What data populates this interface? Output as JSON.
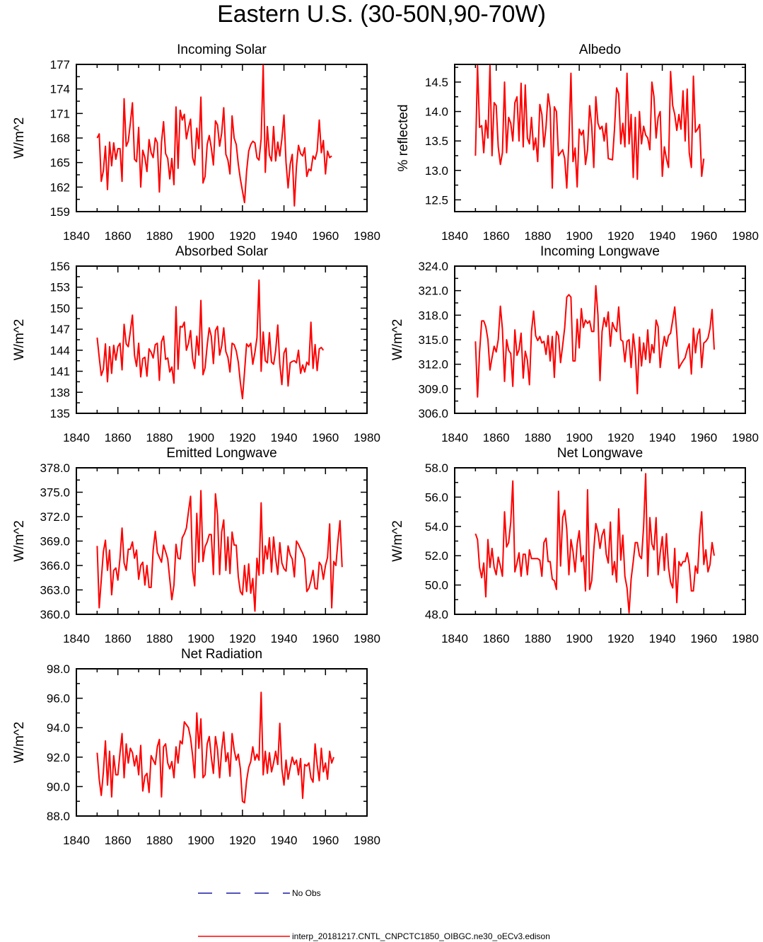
{
  "page": {
    "title": "Eastern U.S. (30-50N,90-70W)"
  },
  "legend": {
    "obs_label": "No Obs",
    "obs_color": "#1a1aa6",
    "model_label": "interp_20181217.CNTL_CNPCTC1850_OIBGC.ne30_oECv3.edison",
    "model_color": "#ff0000"
  },
  "chart_data": [
    {
      "type": "line",
      "title": "Incoming Solar",
      "ylabel": "W/m^2",
      "xlim": [
        1840,
        1980
      ],
      "ylim": [
        159,
        177
      ],
      "xticks": [
        "1840",
        "1860",
        "1880",
        "1900",
        "1920",
        "1940",
        "1960",
        "1980"
      ],
      "yticks": [
        "159",
        "162",
        "165",
        "168",
        "171",
        "174",
        "177"
      ],
      "series": [
        {
          "color": "#ff0000",
          "x_start": 1850,
          "values": [
            168.0,
            168.5,
            162.7,
            164.0,
            167.0,
            161.7,
            167.5,
            164.6,
            167.4,
            165.4,
            166.7,
            166.7,
            162.7,
            172.8,
            167.0,
            167.6,
            169.8,
            172.3,
            165.4,
            165.1,
            169.3,
            162.0,
            166.5,
            165.6,
            163.9,
            167.8,
            166.2,
            165.6,
            168.0,
            167.4,
            161.4,
            167.5,
            170.0,
            166.1,
            165.5,
            163.0,
            165.5,
            162.3,
            171.8,
            164.3,
            171.4,
            170.2,
            170.9,
            167.9,
            169.2,
            170.3,
            165.6,
            164.7,
            169.2,
            166.7,
            173.0,
            162.5,
            163.3,
            167.2,
            168.3,
            166.8,
            164.7,
            170.1,
            169.6,
            167.0,
            168.6,
            171.7,
            166.0,
            165.3,
            163.6,
            170.7,
            168.0,
            167.2,
            164.8,
            163.0,
            161.5,
            160.1,
            163.9,
            166.4,
            167.2,
            167.6,
            167.4,
            165.6,
            165.3,
            167.9,
            176.9,
            163.8,
            169.4,
            165.9,
            165.2,
            169.4,
            165.2,
            167.5,
            165.8,
            167.9,
            170.8,
            165.0,
            161.9,
            164.8,
            166.0,
            159.7,
            164.5,
            167.1,
            166.1,
            165.8,
            166.8,
            163.3,
            164.2,
            164.0,
            165.8,
            165.4,
            166.4,
            170.2,
            166.2,
            167.7,
            163.6,
            166.4,
            165.6,
            165.8
          ]
        }
      ]
    },
    {
      "type": "line",
      "title": "Albedo",
      "ylabel": "% reflected",
      "xlim": [
        1840,
        1980
      ],
      "ylim": [
        12.3,
        14.8
      ],
      "xticks": [
        "1840",
        "1860",
        "1880",
        "1900",
        "1920",
        "1940",
        "1960",
        "1980"
      ],
      "yticks": [
        "12.5",
        "13.0",
        "13.5",
        "14.0",
        "14.5"
      ],
      "series": [
        {
          "color": "#ff0000",
          "x_start": 1850,
          "values": [
            13.25,
            14.78,
            13.73,
            13.76,
            13.3,
            13.85,
            13.55,
            14.78,
            13.25,
            14.15,
            14.1,
            13.4,
            13.1,
            13.3,
            14.5,
            13.3,
            13.9,
            13.8,
            13.5,
            14.15,
            14.25,
            13.5,
            14.48,
            13.4,
            14.45,
            13.55,
            13.45,
            13.9,
            13.35,
            13.55,
            13.15,
            14.12,
            13.95,
            13.4,
            13.75,
            14.3,
            14.05,
            12.7,
            14.08,
            14.0,
            13.25,
            13.3,
            13.35,
            13.2,
            12.7,
            13.5,
            14.65,
            13.15,
            13.38,
            12.72,
            13.7,
            13.6,
            13.68,
            13.1,
            13.35,
            14.1,
            13.75,
            13.05,
            14.25,
            13.8,
            13.7,
            13.75,
            13.5,
            13.8,
            13.2,
            13.19,
            13.18,
            13.7,
            14.4,
            14.3,
            13.45,
            13.8,
            13.4,
            14.65,
            13.45,
            13.95,
            12.88,
            13.9,
            12.85,
            14.0,
            13.45,
            13.75,
            13.6,
            13.55,
            13.35,
            14.5,
            14.25,
            13.55,
            13.9,
            14.0,
            12.9,
            13.4,
            13.2,
            13.05,
            14.68,
            14.1,
            13.95,
            13.68,
            13.95,
            13.7,
            14.35,
            13.5,
            14.38,
            13.3,
            13.05,
            14.6,
            13.65,
            13.7,
            13.78,
            12.9,
            13.2
          ]
        }
      ]
    },
    {
      "type": "line",
      "title": "Absorbed Solar",
      "ylabel": "W/m^2",
      "xlim": [
        1840,
        1980
      ],
      "ylim": [
        135,
        156
      ],
      "xticks": [
        "1840",
        "1860",
        "1880",
        "1900",
        "1920",
        "1940",
        "1960",
        "1980"
      ],
      "yticks": [
        "135",
        "138",
        "141",
        "144",
        "147",
        "150",
        "153",
        "156"
      ],
      "series": [
        {
          "color": "#ff0000",
          "x_start": 1850,
          "values": [
            145.8,
            143.0,
            140.4,
            141.3,
            144.9,
            139.5,
            144.5,
            140.7,
            144.7,
            142.6,
            144.5,
            145.0,
            141.2,
            147.7,
            144.9,
            144.5,
            146.7,
            149.0,
            143.3,
            141.7,
            145.0,
            140.2,
            142.8,
            143.0,
            140.3,
            144.2,
            143.7,
            142.9,
            144.8,
            145.0,
            139.7,
            145.2,
            146.0,
            142.7,
            142.9,
            140.9,
            141.6,
            139.3,
            150.2,
            141.3,
            147.4,
            147.3,
            148.0,
            144.0,
            145.0,
            146.8,
            142.8,
            141.4,
            146.0,
            143.3,
            151.1,
            140.5,
            141.5,
            144.7,
            147.2,
            146.0,
            142.1,
            146.8,
            147.4,
            143.3,
            144.6,
            147.2,
            143.8,
            143.0,
            140.9,
            145.0,
            144.8,
            143.9,
            142.3,
            139.4,
            137.1,
            140.9,
            144.9,
            144.5,
            145.0,
            142.0,
            143.7,
            145.8,
            154.0,
            141.0,
            146.6,
            142.5,
            142.2,
            146.5,
            142.3,
            142.0,
            143.9,
            147.6,
            142.0,
            139.1,
            143.6,
            144.3,
            138.9,
            142.2,
            142.4,
            142.5,
            142.2,
            144.0,
            140.7,
            141.9,
            140.9,
            142.3,
            141.9,
            148.0,
            141.4,
            144.8,
            141.1,
            144.2,
            144.4,
            144.0
          ]
        }
      ]
    },
    {
      "type": "line",
      "title": "Incoming Longwave",
      "ylabel": "W/m^2",
      "xlim": [
        1840,
        1980
      ],
      "ylim": [
        306.0,
        324.0
      ],
      "xticks": [
        "1840",
        "1860",
        "1880",
        "1900",
        "1920",
        "1940",
        "1960",
        "1980"
      ],
      "yticks": [
        "306.0",
        "309.0",
        "312.0",
        "315.0",
        "318.0",
        "321.0",
        "324.0"
      ],
      "series": [
        {
          "color": "#ff0000",
          "x_start": 1850,
          "values": [
            314.8,
            308.0,
            313.5,
            317.3,
            317.3,
            316.6,
            315.0,
            311.3,
            312.8,
            314.2,
            313.5,
            315.0,
            319.1,
            316.3,
            309.9,
            315.0,
            313.7,
            313.3,
            309.3,
            316.2,
            313.1,
            313.8,
            315.8,
            310.3,
            313.6,
            312.5,
            309.5,
            316.0,
            318.5,
            315.5,
            314.9,
            315.4,
            314.6,
            314.8,
            313.2,
            315.5,
            312.4,
            315.4,
            310.4,
            316.0,
            315.5,
            312.2,
            314.3,
            316.5,
            320.2,
            320.5,
            320.2,
            312.4,
            312.4,
            317.5,
            314.0,
            318.8,
            316.5,
            317.4,
            317.0,
            317.3,
            316.0,
            316.0,
            321.6,
            318.0,
            310.0,
            316.0,
            317.7,
            316.6,
            318.4,
            314.2,
            317.1,
            316.4,
            316.0,
            319.0,
            315.0,
            314.8,
            312.3,
            314.8,
            315.0,
            311.6,
            315.7,
            313.5,
            308.4,
            315.3,
            311.8,
            314.6,
            312.6,
            316.2,
            312.2,
            314.4,
            313.4,
            317.4,
            316.6,
            311.6,
            313.8,
            315.4,
            314.2,
            315.5,
            315.8,
            317.4,
            319.0,
            315.8,
            311.5,
            312.0,
            312.4,
            312.8,
            313.8,
            314.5,
            310.8,
            316.4,
            313.4,
            315.6,
            316.3,
            311.6,
            314.6,
            314.8,
            315.2,
            316.4,
            318.7,
            313.8
          ]
        }
      ]
    },
    {
      "type": "line",
      "title": "Emitted Longwave",
      "ylabel": "W/m^2",
      "xlim": [
        1840,
        1980
      ],
      "ylim": [
        360.0,
        378.0
      ],
      "xticks": [
        "1840",
        "1860",
        "1880",
        "1900",
        "1920",
        "1940",
        "1960",
        "1980"
      ],
      "yticks": [
        "360.0",
        "363.0",
        "366.0",
        "369.0",
        "372.0",
        "375.0",
        "378.0"
      ],
      "series": [
        {
          "color": "#ff0000",
          "x_start": 1850,
          "values": [
            368.4,
            360.8,
            364.2,
            367.7,
            369.1,
            365.4,
            367.9,
            362.4,
            365.4,
            365.7,
            364.2,
            366.9,
            370.6,
            366.3,
            365.4,
            368.0,
            368.0,
            368.9,
            366.9,
            367.9,
            364.3,
            366.0,
            366.4,
            363.6,
            366.0,
            363.3,
            363.3,
            367.9,
            370.2,
            367.6,
            367.0,
            366.4,
            368.5,
            367.7,
            366.8,
            364.3,
            361.8,
            363.6,
            368.6,
            366.9,
            366.8,
            369.4,
            369.9,
            370.6,
            372.6,
            374.5,
            365.4,
            363.5,
            372.4,
            366.4,
            375.2,
            366.5,
            368.3,
            368.9,
            369.8,
            369.8,
            364.9,
            374.8,
            372.2,
            364.9,
            370.1,
            371.6,
            365.4,
            369.5,
            365.0,
            370.1,
            368.5,
            368.5,
            364.6,
            362.8,
            362.4,
            366.0,
            362.8,
            366.2,
            362.6,
            364.4,
            360.4,
            366.9,
            364.8,
            373.7,
            365.0,
            368.4,
            366.8,
            369.4,
            365.2,
            369.5,
            366.9,
            364.9,
            368.8,
            366.3,
            365.6,
            365.3,
            368.4,
            367.3,
            366.8,
            364.6,
            369.0,
            368.6,
            368.0,
            367.5,
            366.8,
            362.8,
            363.2,
            364.1,
            365.4,
            363.2,
            363.1,
            366.4,
            366.0,
            364.3,
            366.0,
            367.0,
            371.1,
            360.8,
            366.5,
            366.0,
            369.0,
            371.5,
            365.8
          ]
        }
      ]
    },
    {
      "type": "line",
      "title": "Net Longwave",
      "ylabel": "W/m^2",
      "xlim": [
        1840,
        1980
      ],
      "ylim": [
        48.0,
        58.0
      ],
      "xticks": [
        "1840",
        "1860",
        "1880",
        "1900",
        "1920",
        "1940",
        "1960",
        "1980"
      ],
      "yticks": [
        "48.0",
        "50.0",
        "52.0",
        "54.0",
        "56.0",
        "58.0"
      ],
      "series": [
        {
          "color": "#ff0000",
          "x_start": 1850,
          "values": [
            53.5,
            53.1,
            51.2,
            50.5,
            51.5,
            49.2,
            53.1,
            51.2,
            52.5,
            51.2,
            50.7,
            51.9,
            51.3,
            50.6,
            55.0,
            52.6,
            52.9,
            54.3,
            57.1,
            50.9,
            51.5,
            52.2,
            50.6,
            52.1,
            52.1,
            50.7,
            52.4,
            51.8,
            51.8,
            51.8,
            51.8,
            51.7,
            50.6,
            52.9,
            53.2,
            51.6,
            51.6,
            50.4,
            50.3,
            49.7,
            56.4,
            51.3,
            54.6,
            55.1,
            53.8,
            50.7,
            53.1,
            52.3,
            50.9,
            52.8,
            53.7,
            51.6,
            52.0,
            49.6,
            56.5,
            49.7,
            50.3,
            52.4,
            54.2,
            53.6,
            52.5,
            53.4,
            53.8,
            52.1,
            51.5,
            54.3,
            50.7,
            51.6,
            50.2,
            55.2,
            51.7,
            53.4,
            50.6,
            49.8,
            48.1,
            50.4,
            51.6,
            52.9,
            52.9,
            52.0,
            51.8,
            54.0,
            57.6,
            50.6,
            54.6,
            52.8,
            52.4,
            54.6,
            50.7,
            52.2,
            53.3,
            51.0,
            53.5,
            51.2,
            50.2,
            49.8,
            52.5,
            48.8,
            51.6,
            51.3,
            51.6,
            51.6,
            52.2,
            51.4,
            49.6,
            49.6,
            51.3,
            50.8,
            53.4,
            55.0,
            51.4,
            52.4,
            50.9,
            51.4,
            52.9,
            52.0
          ]
        }
      ]
    },
    {
      "type": "line",
      "title": "Net Radiation",
      "ylabel": "W/m^2",
      "xlim": [
        1840,
        1980
      ],
      "ylim": [
        88.0,
        98.0
      ],
      "xticks": [
        "1840",
        "1860",
        "1880",
        "1900",
        "1920",
        "1940",
        "1960",
        "1980"
      ],
      "yticks": [
        "88.0",
        "90.0",
        "92.0",
        "94.0",
        "96.0",
        "98.0"
      ],
      "series": [
        {
          "color": "#ff0000",
          "x_start": 1850,
          "values": [
            92.3,
            90.5,
            89.4,
            91.0,
            93.1,
            90.1,
            92.4,
            89.3,
            92.1,
            90.8,
            90.8,
            92.3,
            93.6,
            90.6,
            92.9,
            91.6,
            92.6,
            92.3,
            91.4,
            92.1,
            90.8,
            92.8,
            89.7,
            90.7,
            90.9,
            89.6,
            92.1,
            91.8,
            91.5,
            92.7,
            93.2,
            89.3,
            92.7,
            92.9,
            91.6,
            91.2,
            91.7,
            90.6,
            92.7,
            91.6,
            93.1,
            92.9,
            94.4,
            94.2,
            94.0,
            93.3,
            92.1,
            90.6,
            95.0,
            92.6,
            94.6,
            90.6,
            90.8,
            92.9,
            93.4,
            92.0,
            90.9,
            93.4,
            92.5,
            90.6,
            92.5,
            93.7,
            91.7,
            92.3,
            90.7,
            93.6,
            92.5,
            91.8,
            92.2,
            91.2,
            89.0,
            88.9,
            90.4,
            91.3,
            91.7,
            92.7,
            91.8,
            92.2,
            91.8,
            96.4,
            90.8,
            92.4,
            90.9,
            92.3,
            91.0,
            91.6,
            92.4,
            91.5,
            94.3,
            91.2,
            90.1,
            91.8,
            90.5,
            91.3,
            92.0,
            91.5,
            91.8,
            90.8,
            91.9,
            89.2,
            91.5,
            91.4,
            91.6,
            90.6,
            90.3,
            92.9,
            91.5,
            90.4,
            92.6,
            91.0,
            91.6,
            90.5,
            92.4,
            91.6,
            92.0
          ]
        }
      ]
    }
  ]
}
